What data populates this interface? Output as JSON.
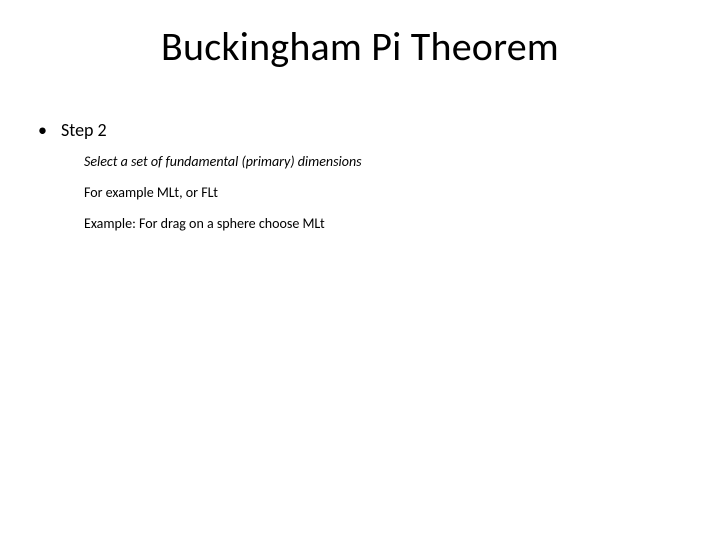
{
  "slide": {
    "title": "Buckingham Pi Theorem",
    "title_fontsize": 40,
    "background_color": "#ffffff",
    "text_color": "#000000",
    "bullet": {
      "marker": "•",
      "label": "Step 2",
      "label_fontsize": 18
    },
    "sub_lines": [
      {
        "text": "Select a set of fundamental (primary) dimensions",
        "italic": true
      },
      {
        "text": "For example MLt, or FLt",
        "italic": false
      },
      {
        "text": "Example: For drag on a sphere choose MLt",
        "italic": false
      }
    ],
    "sub_fontsize": 14
  }
}
